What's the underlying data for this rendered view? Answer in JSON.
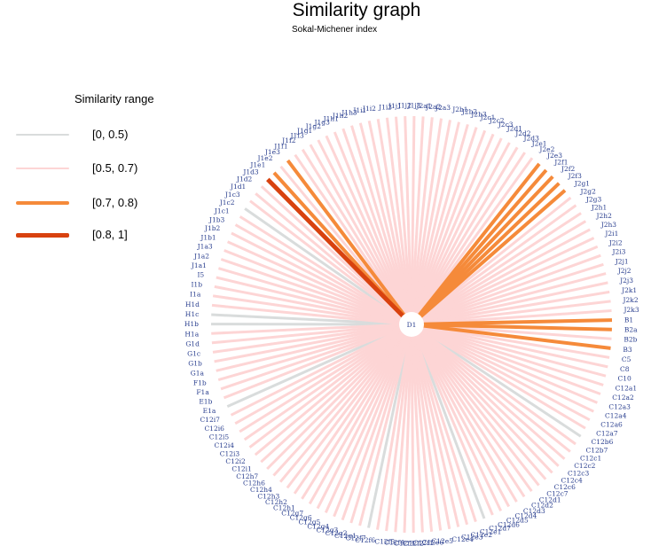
{
  "title": "Similarity graph",
  "subtitle": "Sokal-Michener index",
  "legend": {
    "title": "Similarity range",
    "items": [
      {
        "label": "[0, 0.5)",
        "color": "#d9dcdc",
        "width": 1.5
      },
      {
        "label": "[0.5, 0.7)",
        "color": "#fdd5d5",
        "width": 1.5
      },
      {
        "label": "[0.7, 0.8)",
        "color": "#f58a3a",
        "width": 4
      },
      {
        "label": "[0.8, 1]",
        "color": "#d8420f",
        "width": 5
      }
    ]
  },
  "center": {
    "label": "D1"
  },
  "nodes": [
    {
      "label": "B1",
      "range": 2
    },
    {
      "label": "B2a",
      "range": 2
    },
    {
      "label": "B2b",
      "range": 1
    },
    {
      "label": "B3",
      "range": 2
    },
    {
      "label": "C5",
      "range": 1
    },
    {
      "label": "C8",
      "range": 1
    },
    {
      "label": "C10",
      "range": 1
    },
    {
      "label": "C12a1",
      "range": 1
    },
    {
      "label": "C12a2",
      "range": 1
    },
    {
      "label": "C12a3",
      "range": 1
    },
    {
      "label": "C12a4",
      "range": 1
    },
    {
      "label": "C12a6",
      "range": 1
    },
    {
      "label": "C12a7",
      "range": 1
    },
    {
      "label": "C12b6",
      "range": 0
    },
    {
      "label": "C12b7",
      "range": 1
    },
    {
      "label": "C12c1",
      "range": 1
    },
    {
      "label": "C12c2",
      "range": 1
    },
    {
      "label": "C12c3",
      "range": 1
    },
    {
      "label": "C12c4",
      "range": 1
    },
    {
      "label": "C12c6",
      "range": 1
    },
    {
      "label": "C12c7",
      "range": 1
    },
    {
      "label": "C12d1",
      "range": 1
    },
    {
      "label": "C12d2",
      "range": 1
    },
    {
      "label": "C12d3",
      "range": 1
    },
    {
      "label": "C12d4",
      "range": 1
    },
    {
      "label": "C12d5",
      "range": 1
    },
    {
      "label": "C12d6",
      "range": 1
    },
    {
      "label": "C12d7",
      "range": 0
    },
    {
      "label": "C12e1",
      "range": 1
    },
    {
      "label": "C12e2",
      "range": 1
    },
    {
      "label": "C12e3",
      "range": 1
    },
    {
      "label": "C12e4",
      "range": 1
    },
    {
      "label": "C12e5",
      "range": 1
    },
    {
      "label": "C12e6",
      "range": 1
    },
    {
      "label": "C12f1",
      "range": 1
    },
    {
      "label": "C12f2",
      "range": 1
    },
    {
      "label": "C12f3",
      "range": 1
    },
    {
      "label": "C12f4",
      "range": 1
    },
    {
      "label": "C12f5",
      "range": 1
    },
    {
      "label": "C12f6",
      "range": 1
    },
    {
      "label": "C12f7",
      "range": 0
    },
    {
      "label": "C12g1",
      "range": 1
    },
    {
      "label": "C12g2",
      "range": 1
    },
    {
      "label": "C12g3",
      "range": 1
    },
    {
      "label": "C12g4",
      "range": 1
    },
    {
      "label": "C12g5",
      "range": 1
    },
    {
      "label": "C12g6",
      "range": 1
    },
    {
      "label": "C12g7",
      "range": 1
    },
    {
      "label": "C12h1",
      "range": 1
    },
    {
      "label": "C12h2",
      "range": 1
    },
    {
      "label": "C12h3",
      "range": 1
    },
    {
      "label": "C12h4",
      "range": 1
    },
    {
      "label": "C12h6",
      "range": 1
    },
    {
      "label": "C12h7",
      "range": 1
    },
    {
      "label": "C12i1",
      "range": 1
    },
    {
      "label": "C12i2",
      "range": 1
    },
    {
      "label": "C12i3",
      "range": 1
    },
    {
      "label": "C12i4",
      "range": 1
    },
    {
      "label": "C12i5",
      "range": 1
    },
    {
      "label": "C12i6",
      "range": 1
    },
    {
      "label": "C12i7",
      "range": 1
    },
    {
      "label": "E1a",
      "range": 0
    },
    {
      "label": "E1b",
      "range": 1
    },
    {
      "label": "F1a",
      "range": 1
    },
    {
      "label": "F1b",
      "range": 1
    },
    {
      "label": "G1a",
      "range": 1
    },
    {
      "label": "G1b",
      "range": 1
    },
    {
      "label": "G1c",
      "range": 1
    },
    {
      "label": "G1d",
      "range": 1
    },
    {
      "label": "H1a",
      "range": 1
    },
    {
      "label": "H1b",
      "range": 0
    },
    {
      "label": "H1c",
      "range": 0
    },
    {
      "label": "H1d",
      "range": 1
    },
    {
      "label": "I1a",
      "range": 1
    },
    {
      "label": "I1b",
      "range": 1
    },
    {
      "label": "I5",
      "range": 1
    },
    {
      "label": "J1a1",
      "range": 1
    },
    {
      "label": "J1a2",
      "range": 1
    },
    {
      "label": "J1a3",
      "range": 1
    },
    {
      "label": "J1b1",
      "range": 1
    },
    {
      "label": "J1b2",
      "range": 1
    },
    {
      "label": "J1b3",
      "range": 1
    },
    {
      "label": "J1c1",
      "range": 1
    },
    {
      "label": "J1c2",
      "range": 0
    },
    {
      "label": "J1c3",
      "range": 1
    },
    {
      "label": "J1d1",
      "range": 1
    },
    {
      "label": "J1d2",
      "range": 1
    },
    {
      "label": "J1d3",
      "range": 3
    },
    {
      "label": "J1e1",
      "range": 2
    },
    {
      "label": "J1e2",
      "range": 1
    },
    {
      "label": "J1e3",
      "range": 2
    },
    {
      "label": "J1f1",
      "range": 1
    },
    {
      "label": "J1f2",
      "range": 1
    },
    {
      "label": "J1f3",
      "range": 1
    },
    {
      "label": "J1g1",
      "range": 1
    },
    {
      "label": "J1g2",
      "range": 1
    },
    {
      "label": "J1g3",
      "range": 1
    },
    {
      "label": "J1h1",
      "range": 1
    },
    {
      "label": "J1h2",
      "range": 1
    },
    {
      "label": "J1h3",
      "range": 1
    },
    {
      "label": "J1i1",
      "range": 1
    },
    {
      "label": "J1i2",
      "range": 1
    },
    {
      "label": "J1i3",
      "range": 1
    },
    {
      "label": "J1j1",
      "range": 1
    },
    {
      "label": "J1j2",
      "range": 1
    },
    {
      "label": "J1j3",
      "range": 1
    },
    {
      "label": "J2a1",
      "range": 1
    },
    {
      "label": "J2a2",
      "range": 1
    },
    {
      "label": "J2a3",
      "range": 1
    },
    {
      "label": "J2b1",
      "range": 1
    },
    {
      "label": "J2b2",
      "range": 1
    },
    {
      "label": "J2b3",
      "range": 1
    },
    {
      "label": "J2c1",
      "range": 1
    },
    {
      "label": "J2c2",
      "range": 1
    },
    {
      "label": "J2c3",
      "range": 1
    },
    {
      "label": "J2d1",
      "range": 1
    },
    {
      "label": "J2d2",
      "range": 1
    },
    {
      "label": "J2d3",
      "range": 1
    },
    {
      "label": "J2e1",
      "range": 1
    },
    {
      "label": "J2e2",
      "range": 1
    },
    {
      "label": "J2e3",
      "range": 2
    },
    {
      "label": "J2f1",
      "range": 2
    },
    {
      "label": "J2f2",
      "range": 2
    },
    {
      "label": "J2f3",
      "range": 2
    },
    {
      "label": "J2g1",
      "range": 2
    },
    {
      "label": "J2g2",
      "range": 1
    },
    {
      "label": "J2g3",
      "range": 1
    },
    {
      "label": "J2h1",
      "range": 1
    },
    {
      "label": "J2h2",
      "range": 1
    },
    {
      "label": "J2h3",
      "range": 1
    },
    {
      "label": "J2i1",
      "range": 1
    },
    {
      "label": "J2i2",
      "range": 1
    },
    {
      "label": "J2i3",
      "range": 1
    },
    {
      "label": "J2j1",
      "range": 1
    },
    {
      "label": "J2j2",
      "range": 1
    },
    {
      "label": "J2j3",
      "range": 1
    },
    {
      "label": "J2k1",
      "range": 1
    },
    {
      "label": "J2k2",
      "range": 1
    },
    {
      "label": "J2k3",
      "range": 1
    }
  ]
}
